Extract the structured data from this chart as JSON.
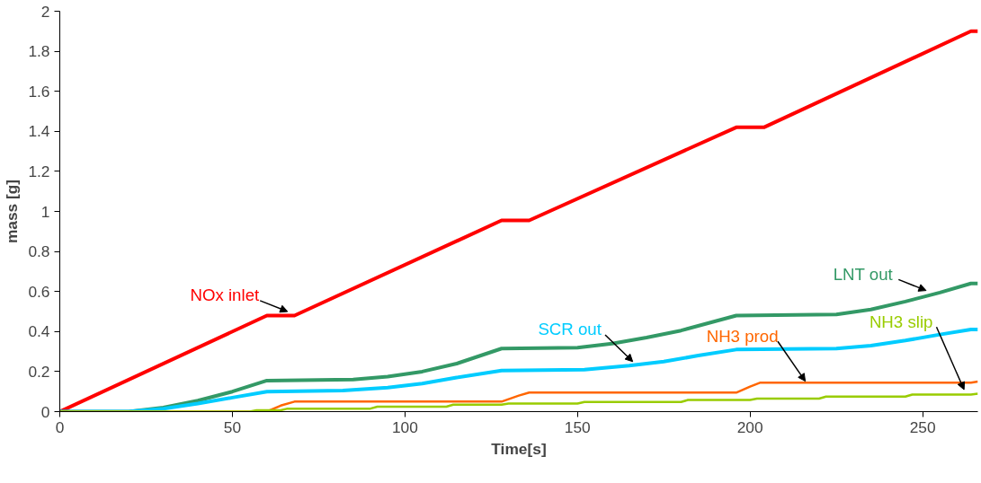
{
  "chart_data": {
    "type": "line",
    "xlabel": "Time[s]",
    "ylabel": "mass [g]",
    "xlim": [
      0,
      266
    ],
    "ylim": [
      0,
      2
    ],
    "xticks": [
      0,
      50,
      100,
      150,
      200,
      250
    ],
    "yticks": [
      0,
      0.2,
      0.4,
      0.6,
      0.8,
      1,
      1.2,
      1.4,
      1.6,
      1.8,
      2
    ],
    "grid": false,
    "marker": "none",
    "line_style": "solid",
    "series": [
      {
        "color": "#ff0000",
        "x": [
          0,
          60,
          68,
          128,
          136,
          196,
          204,
          264,
          266
        ],
        "values": [
          0,
          0.48,
          0.48,
          0.955,
          0.955,
          1.42,
          1.42,
          1.9,
          1.9
        ]
      },
      {
        "color": "#339966",
        "x": [
          0,
          20,
          30,
          40,
          50,
          60,
          85,
          95,
          105,
          115,
          128,
          150,
          160,
          170,
          180,
          196,
          225,
          235,
          245,
          255,
          264,
          266
        ],
        "values": [
          0,
          0,
          0.02,
          0.055,
          0.1,
          0.155,
          0.16,
          0.175,
          0.2,
          0.24,
          0.315,
          0.32,
          0.34,
          0.37,
          0.405,
          0.48,
          0.485,
          0.51,
          0.55,
          0.595,
          0.64,
          0.64
        ]
      },
      {
        "color": "#00ccff",
        "x": [
          0,
          20,
          30,
          40,
          50,
          60,
          82,
          95,
          105,
          115,
          128,
          152,
          165,
          175,
          185,
          196,
          225,
          235,
          245,
          255,
          264,
          266
        ],
        "values": [
          0,
          0,
          0.015,
          0.04,
          0.07,
          0.1,
          0.105,
          0.12,
          0.14,
          0.17,
          0.205,
          0.21,
          0.23,
          0.25,
          0.28,
          0.31,
          0.315,
          0.33,
          0.355,
          0.385,
          0.41,
          0.41
        ]
      },
      {
        "color": "#ff6600",
        "x": [
          0,
          60,
          64,
          68,
          128,
          133,
          136,
          196,
          200,
          203,
          264,
          266
        ],
        "values": [
          0,
          0,
          0.03,
          0.05,
          0.05,
          0.08,
          0.095,
          0.095,
          0.125,
          0.145,
          0.145,
          0.15
        ]
      },
      {
        "color": "#99cc00",
        "x": [
          0,
          55,
          57,
          64,
          66,
          90,
          92,
          112,
          114,
          128,
          130,
          150,
          152,
          180,
          182,
          200,
          202,
          220,
          222,
          245,
          247,
          264,
          266
        ],
        "values": [
          0,
          0,
          0.007,
          0.007,
          0.015,
          0.015,
          0.025,
          0.025,
          0.035,
          0.035,
          0.04,
          0.04,
          0.048,
          0.048,
          0.058,
          0.058,
          0.065,
          0.065,
          0.075,
          0.075,
          0.085,
          0.085,
          0.09
        ]
      }
    ],
    "annotations": [
      {
        "text": "NOx inlet",
        "x": 66,
        "y": 0.5
      },
      {
        "text": "LNT out",
        "x": 251,
        "y": 0.605
      },
      {
        "text": "SCR out",
        "x": 166,
        "y": 0.25
      },
      {
        "text": "NH3 prod",
        "x": 216,
        "y": 0.152
      },
      {
        "text": "NH3 slip",
        "x": 262,
        "y": 0.11
      }
    ]
  }
}
